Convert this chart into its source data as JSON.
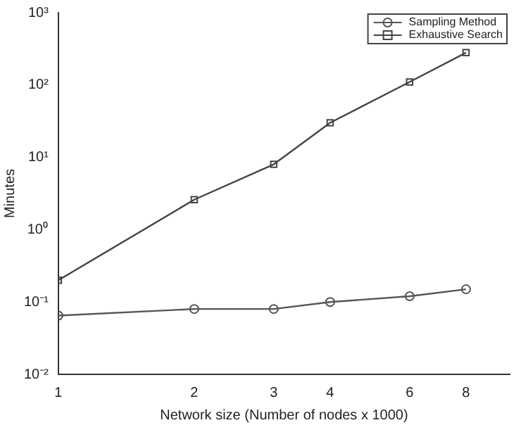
{
  "chart_data": {
    "type": "line",
    "xlabel": "Network size (Number of nodes x 1000)",
    "ylabel": "Minutes",
    "x": [
      1,
      2,
      3,
      4,
      6,
      8
    ],
    "log": "xy",
    "series": [
      {
        "name": "Sampling Method",
        "color": "#555555",
        "marker": "circle",
        "values": [
          0.065,
          0.08,
          0.08,
          0.1,
          0.12,
          0.15
        ]
      },
      {
        "name": "Exhaustive Search",
        "color": "#444444",
        "marker": "square",
        "values": [
          0.2,
          2.6,
          8,
          30,
          110,
          280
        ]
      }
    ],
    "xlim": [
      1,
      10
    ],
    "xticks": [
      1,
      2,
      3,
      4,
      6,
      8
    ],
    "ylim": [
      0.01,
      1000
    ],
    "yticks": [
      {
        "value": 0.01,
        "label": "10⁻²"
      },
      {
        "value": 0.1,
        "label": "10⁻¹"
      },
      {
        "value": 1,
        "label": "10⁰"
      },
      {
        "value": 10,
        "label": "10¹"
      },
      {
        "value": 100,
        "label": "10²"
      },
      {
        "value": 1000,
        "label": "10³"
      }
    ],
    "legend": "top right",
    "grid": false,
    "line_style": "solid"
  }
}
